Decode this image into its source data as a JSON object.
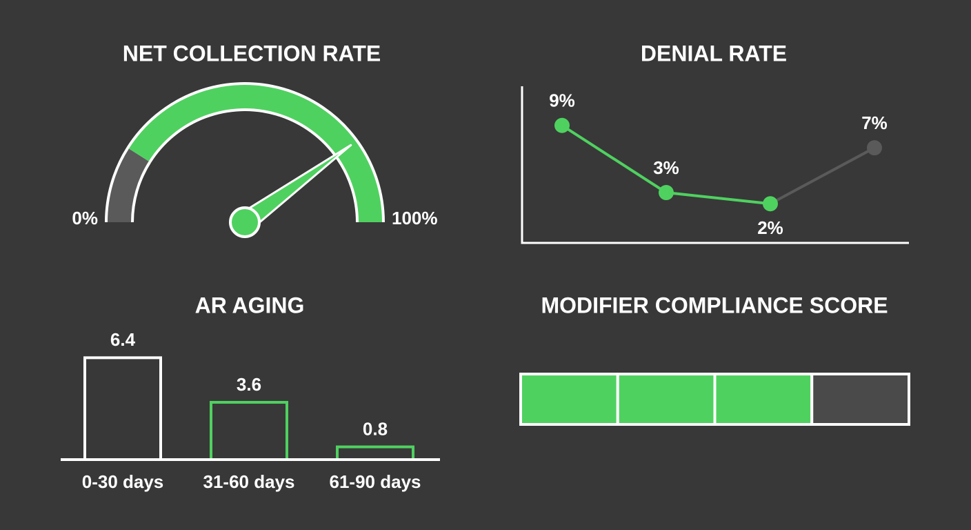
{
  "chart_data": [
    {
      "type": "gauge",
      "title": "NET COLLECTION RATE",
      "value": 80,
      "lim": [
        0,
        100
      ],
      "ticks": [
        {
          "value": 0,
          "label": "0%"
        },
        {
          "value": 100,
          "label": "100%"
        }
      ],
      "ranges": [
        {
          "from": 0,
          "to": 18,
          "color": "#5a5a5a"
        },
        {
          "from": 18,
          "to": 100,
          "color": "#4fd160"
        }
      ],
      "color": "#4fd160"
    },
    {
      "type": "line",
      "title": "DENIAL RATE",
      "categories": [
        null,
        null,
        null,
        null
      ],
      "values": [
        9,
        3,
        2,
        7
      ],
      "value_labels": [
        "9%",
        "3%",
        "2%",
        "7%"
      ],
      "point_colors": [
        "#4fd160",
        "#4fd160",
        "#4fd160",
        "#5a5a5a"
      ],
      "ylim": [
        -1.5,
        12.5
      ]
    },
    {
      "type": "bar",
      "title": "AR AGING",
      "categories": [
        "0-30 days",
        "31-60 days",
        "61-90 days"
      ],
      "values": [
        6.4,
        3.6,
        0.8
      ],
      "colors": [
        "#ffffff",
        "#4fd160",
        "#4fd160"
      ],
      "ylim": [
        0,
        7.5
      ]
    },
    {
      "type": "segments",
      "title": "MODIFIER COMPLIANCE SCORE",
      "value": 3,
      "lim": [
        0,
        4
      ],
      "color": "#4fd160",
      "empty_color": "#4a4a4a"
    }
  ]
}
